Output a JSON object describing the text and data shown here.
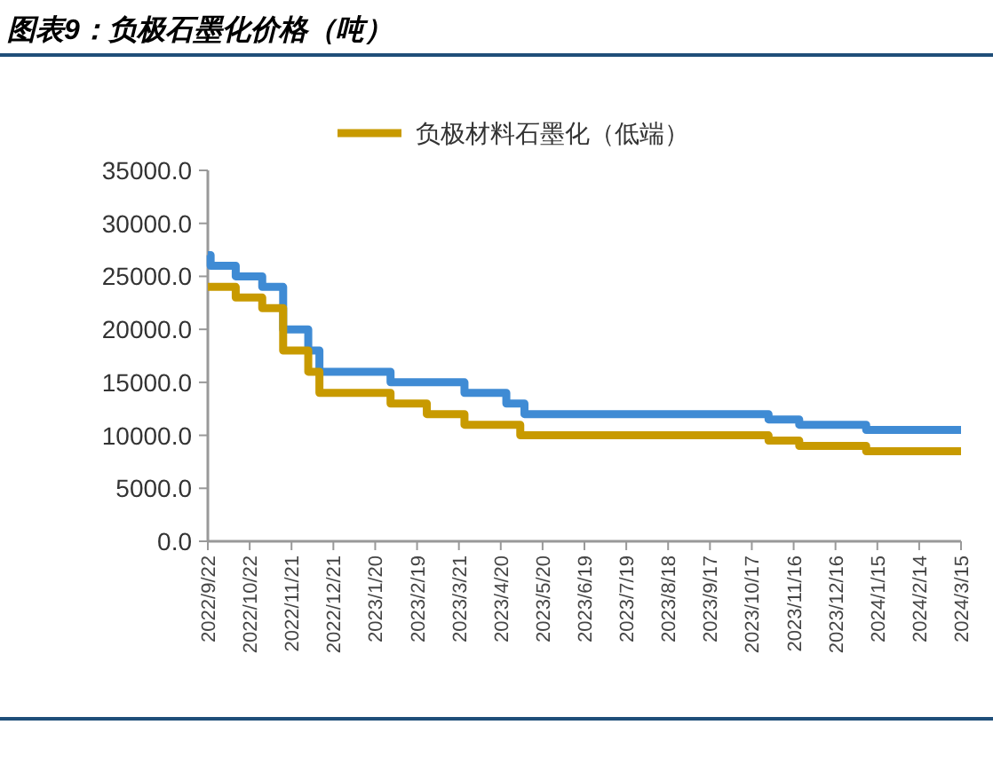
{
  "chart_data": {
    "type": "step",
    "title": "图表9：负极石墨化价格（吨）",
    "xlim": [
      "2022-09-22",
      "2024-03-15"
    ],
    "xticks": [
      {
        "value": "2022-09-22",
        "label": "2022/9/22"
      },
      {
        "value": "2022-10-22",
        "label": "2022/10/22"
      },
      {
        "value": "2022-11-21",
        "label": "2022/11/21"
      },
      {
        "value": "2022-12-21",
        "label": "2022/12/21"
      },
      {
        "value": "2023-01-20",
        "label": "2023/1/20"
      },
      {
        "value": "2023-02-19",
        "label": "2023/2/19"
      },
      {
        "value": "2023-03-21",
        "label": "2023/3/21"
      },
      {
        "value": "2023-04-20",
        "label": "2023/4/20"
      },
      {
        "value": "2023-05-20",
        "label": "2023/5/20"
      },
      {
        "value": "2023-06-19",
        "label": "2023/6/19"
      },
      {
        "value": "2023-07-19",
        "label": "2023/7/19"
      },
      {
        "value": "2023-08-18",
        "label": "2023/8/18"
      },
      {
        "value": "2023-09-17",
        "label": "2023/9/17"
      },
      {
        "value": "2023-10-17",
        "label": "2023/10/17"
      },
      {
        "value": "2023-11-16",
        "label": "2023/11/16"
      },
      {
        "value": "2023-12-16",
        "label": "2023/12/16"
      },
      {
        "value": "2024-01-15",
        "label": "2024/1/15"
      },
      {
        "value": "2024-02-14",
        "label": "2024/2/14"
      },
      {
        "value": "2024-03-15",
        "label": "2024/3/15"
      }
    ],
    "ylim": [
      0,
      35000
    ],
    "yticks": [
      {
        "value": 0,
        "label": "0.0"
      },
      {
        "value": 5000,
        "label": "5000.0"
      },
      {
        "value": 10000,
        "label": "10000.0"
      },
      {
        "value": 15000,
        "label": "15000.0"
      },
      {
        "value": 20000,
        "label": "20000.0"
      },
      {
        "value": 25000,
        "label": "25000.0"
      },
      {
        "value": 30000,
        "label": "30000.0"
      },
      {
        "value": 35000,
        "label": "35000.0"
      }
    ],
    "grid": false,
    "legend": "top",
    "marker": "none",
    "line_style": "solid",
    "series": [
      {
        "color": "#3f8bd4",
        "x": [
          "2022-09-22",
          "2022-09-24",
          "2022-10-12",
          "2022-10-31",
          "2022-11-15",
          "2022-12-03",
          "2022-12-11",
          "2023-01-31",
          "2023-03-25",
          "2023-04-24",
          "2023-05-07",
          "2023-10-29",
          "2023-11-20",
          "2024-01-07",
          "2024-03-15"
        ],
        "values": [
          27000,
          26000,
          25000,
          24000,
          20000,
          18000,
          16000,
          15000,
          14000,
          13000,
          12000,
          11500,
          11000,
          10500,
          10500
        ]
      },
      {
        "name": "负极材料石墨化（低端）",
        "color": "#c89a00",
        "x": [
          "2022-09-22",
          "2022-10-12",
          "2022-10-31",
          "2022-11-15",
          "2022-12-03",
          "2022-12-11",
          "2023-01-31",
          "2023-02-26",
          "2023-03-25",
          "2023-05-04",
          "2023-10-29",
          "2023-11-20",
          "2024-01-07",
          "2024-03-15"
        ],
        "values": [
          24000,
          23000,
          22000,
          18000,
          16000,
          14000,
          13000,
          12000,
          11000,
          10000,
          9500,
          9000,
          8500,
          8500
        ]
      }
    ]
  }
}
